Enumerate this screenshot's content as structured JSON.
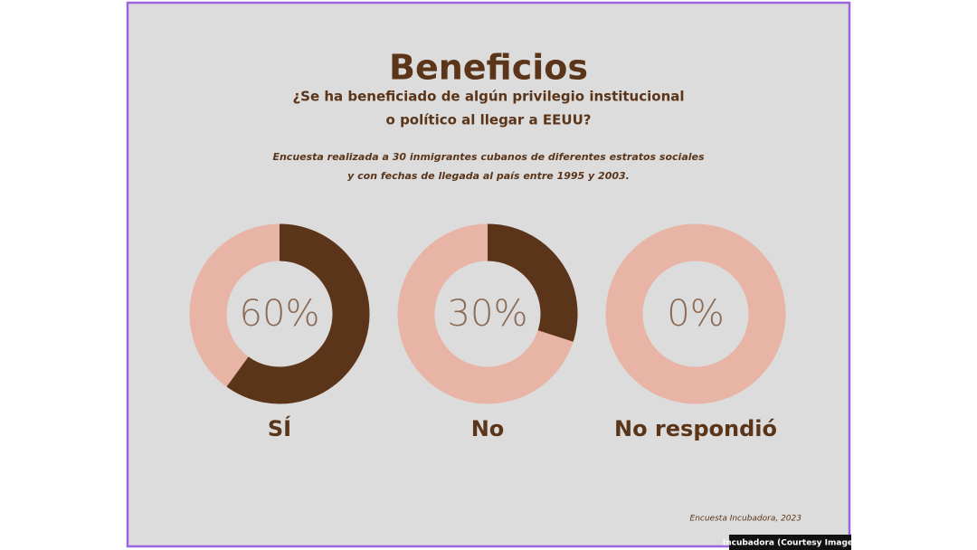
{
  "header": {
    "title": "Beneficios",
    "subtitle": [
      "¿Se ha beneficiado de algún privilegio institucional",
      "o político al llegar a EEUU?"
    ],
    "note": [
      "Encuesta realizada a 30 inmigrantes cubanos de diferentes estratos sociales",
      "y con fechas de llegada al país entre 1995 y 2003."
    ]
  },
  "chart_data": [
    {
      "type": "pie",
      "title": "SÍ",
      "values": [
        60
      ],
      "value_labels": [
        "60%"
      ],
      "color": "#5a3519",
      "track_color": "#e8b4a5"
    },
    {
      "type": "pie",
      "title": "No",
      "values": [
        30
      ],
      "value_labels": [
        "30%"
      ],
      "color": "#5a3519",
      "track_color": "#e8b4a5"
    },
    {
      "type": "pie",
      "title": "No respondió",
      "values": [
        0
      ],
      "value_labels": [
        "0%"
      ],
      "color": "#5a3519",
      "track_color": "#e8b4a5"
    }
  ],
  "footer": {
    "source": "Encuesta Incubadora, 2023",
    "credit": "Incubadora (Courtesy Image)"
  }
}
